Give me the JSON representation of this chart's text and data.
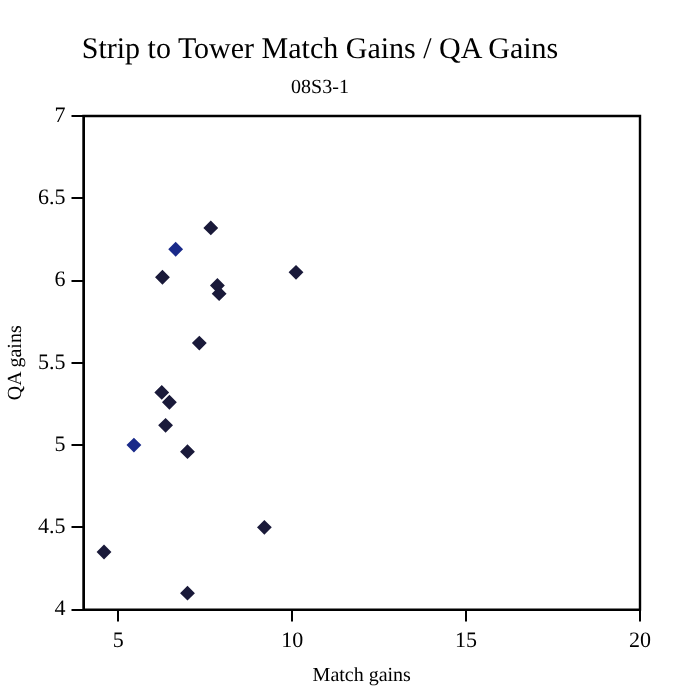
{
  "chart_data": {
    "type": "scatter",
    "title": "Strip to Tower Match Gains / QA Gains",
    "subtitle": "08S3-1",
    "xlabel": "Match gains",
    "ylabel": "QA gains",
    "x": [
      6.65,
      7.66,
      6.27,
      7.85,
      7.9,
      10.11,
      7.33,
      6.25,
      6.47,
      6.36,
      5.45,
      6.99,
      9.2,
      4.59,
      6.99
    ],
    "values": [
      6.19,
      6.32,
      6.02,
      5.97,
      5.92,
      6.05,
      5.62,
      5.32,
      5.26,
      5.12,
      5.0,
      4.96,
      4.5,
      4.35,
      4.1
    ],
    "colors": [
      "#1a2a8a",
      "#1a1a3a",
      "#1a1a3a",
      "#1a1a3a",
      "#1a1a3a",
      "#1a1a3a",
      "#1a1a3a",
      "#1a1a3a",
      "#1a1a3a",
      "#1a1a3a",
      "#1a2a8a",
      "#1a1a3a",
      "#1a1a3a",
      "#1a1a3a",
      "#1a1a3a"
    ],
    "xlim": [
      4,
      20
    ],
    "xticks": [
      5,
      10,
      15,
      20
    ],
    "ylim": [
      4,
      7
    ],
    "yticks": [
      4,
      4.5,
      5,
      5.5,
      6,
      6.5,
      7
    ],
    "marker": "diamond",
    "grid": false,
    "legend": false
  }
}
